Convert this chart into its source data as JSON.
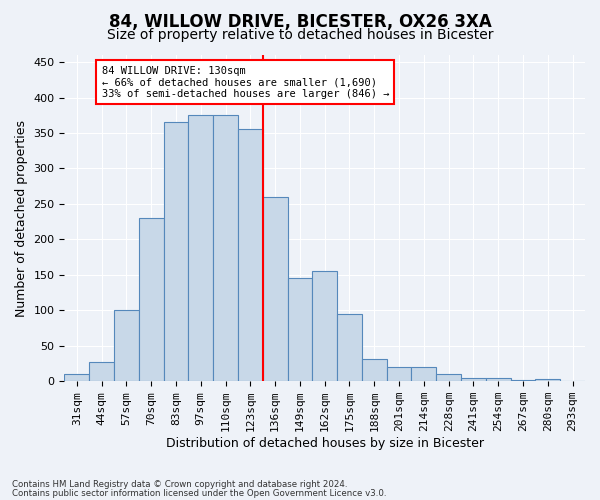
{
  "title": "84, WILLOW DRIVE, BICESTER, OX26 3XA",
  "subtitle": "Size of property relative to detached houses in Bicester",
  "xlabel": "Distribution of detached houses by size in Bicester",
  "ylabel": "Number of detached properties",
  "footnote1": "Contains HM Land Registry data © Crown copyright and database right 2024.",
  "footnote2": "Contains public sector information licensed under the Open Government Licence v3.0.",
  "bin_labels": [
    "31sqm",
    "44sqm",
    "57sqm",
    "70sqm",
    "83sqm",
    "97sqm",
    "110sqm",
    "123sqm",
    "136sqm",
    "149sqm",
    "162sqm",
    "175sqm",
    "188sqm",
    "201sqm",
    "214sqm",
    "228sqm",
    "241sqm",
    "254sqm",
    "267sqm",
    "280sqm",
    "293sqm"
  ],
  "bar_values": [
    10,
    27,
    100,
    230,
    365,
    375,
    375,
    355,
    260,
    145,
    155,
    95,
    32,
    20,
    20,
    10,
    5,
    5,
    2,
    3,
    0
  ],
  "bar_color": "#c8d8e8",
  "bar_edge_color": "#5588bb",
  "vline_x": 7.5,
  "vline_color": "red",
  "annotation_line1": "84 WILLOW DRIVE: 130sqm",
  "annotation_line2": "← 66% of detached houses are smaller (1,690)",
  "annotation_line3": "33% of semi-detached houses are larger (846) →",
  "annotation_box_color": "white",
  "annotation_box_edge_color": "red",
  "ylim": [
    0,
    460
  ],
  "yticks": [
    0,
    50,
    100,
    150,
    200,
    250,
    300,
    350,
    400,
    450
  ],
  "background_color": "#eef2f8",
  "grid_color": "white",
  "title_fontsize": 12,
  "subtitle_fontsize": 10,
  "axis_label_fontsize": 9,
  "tick_fontsize": 8
}
